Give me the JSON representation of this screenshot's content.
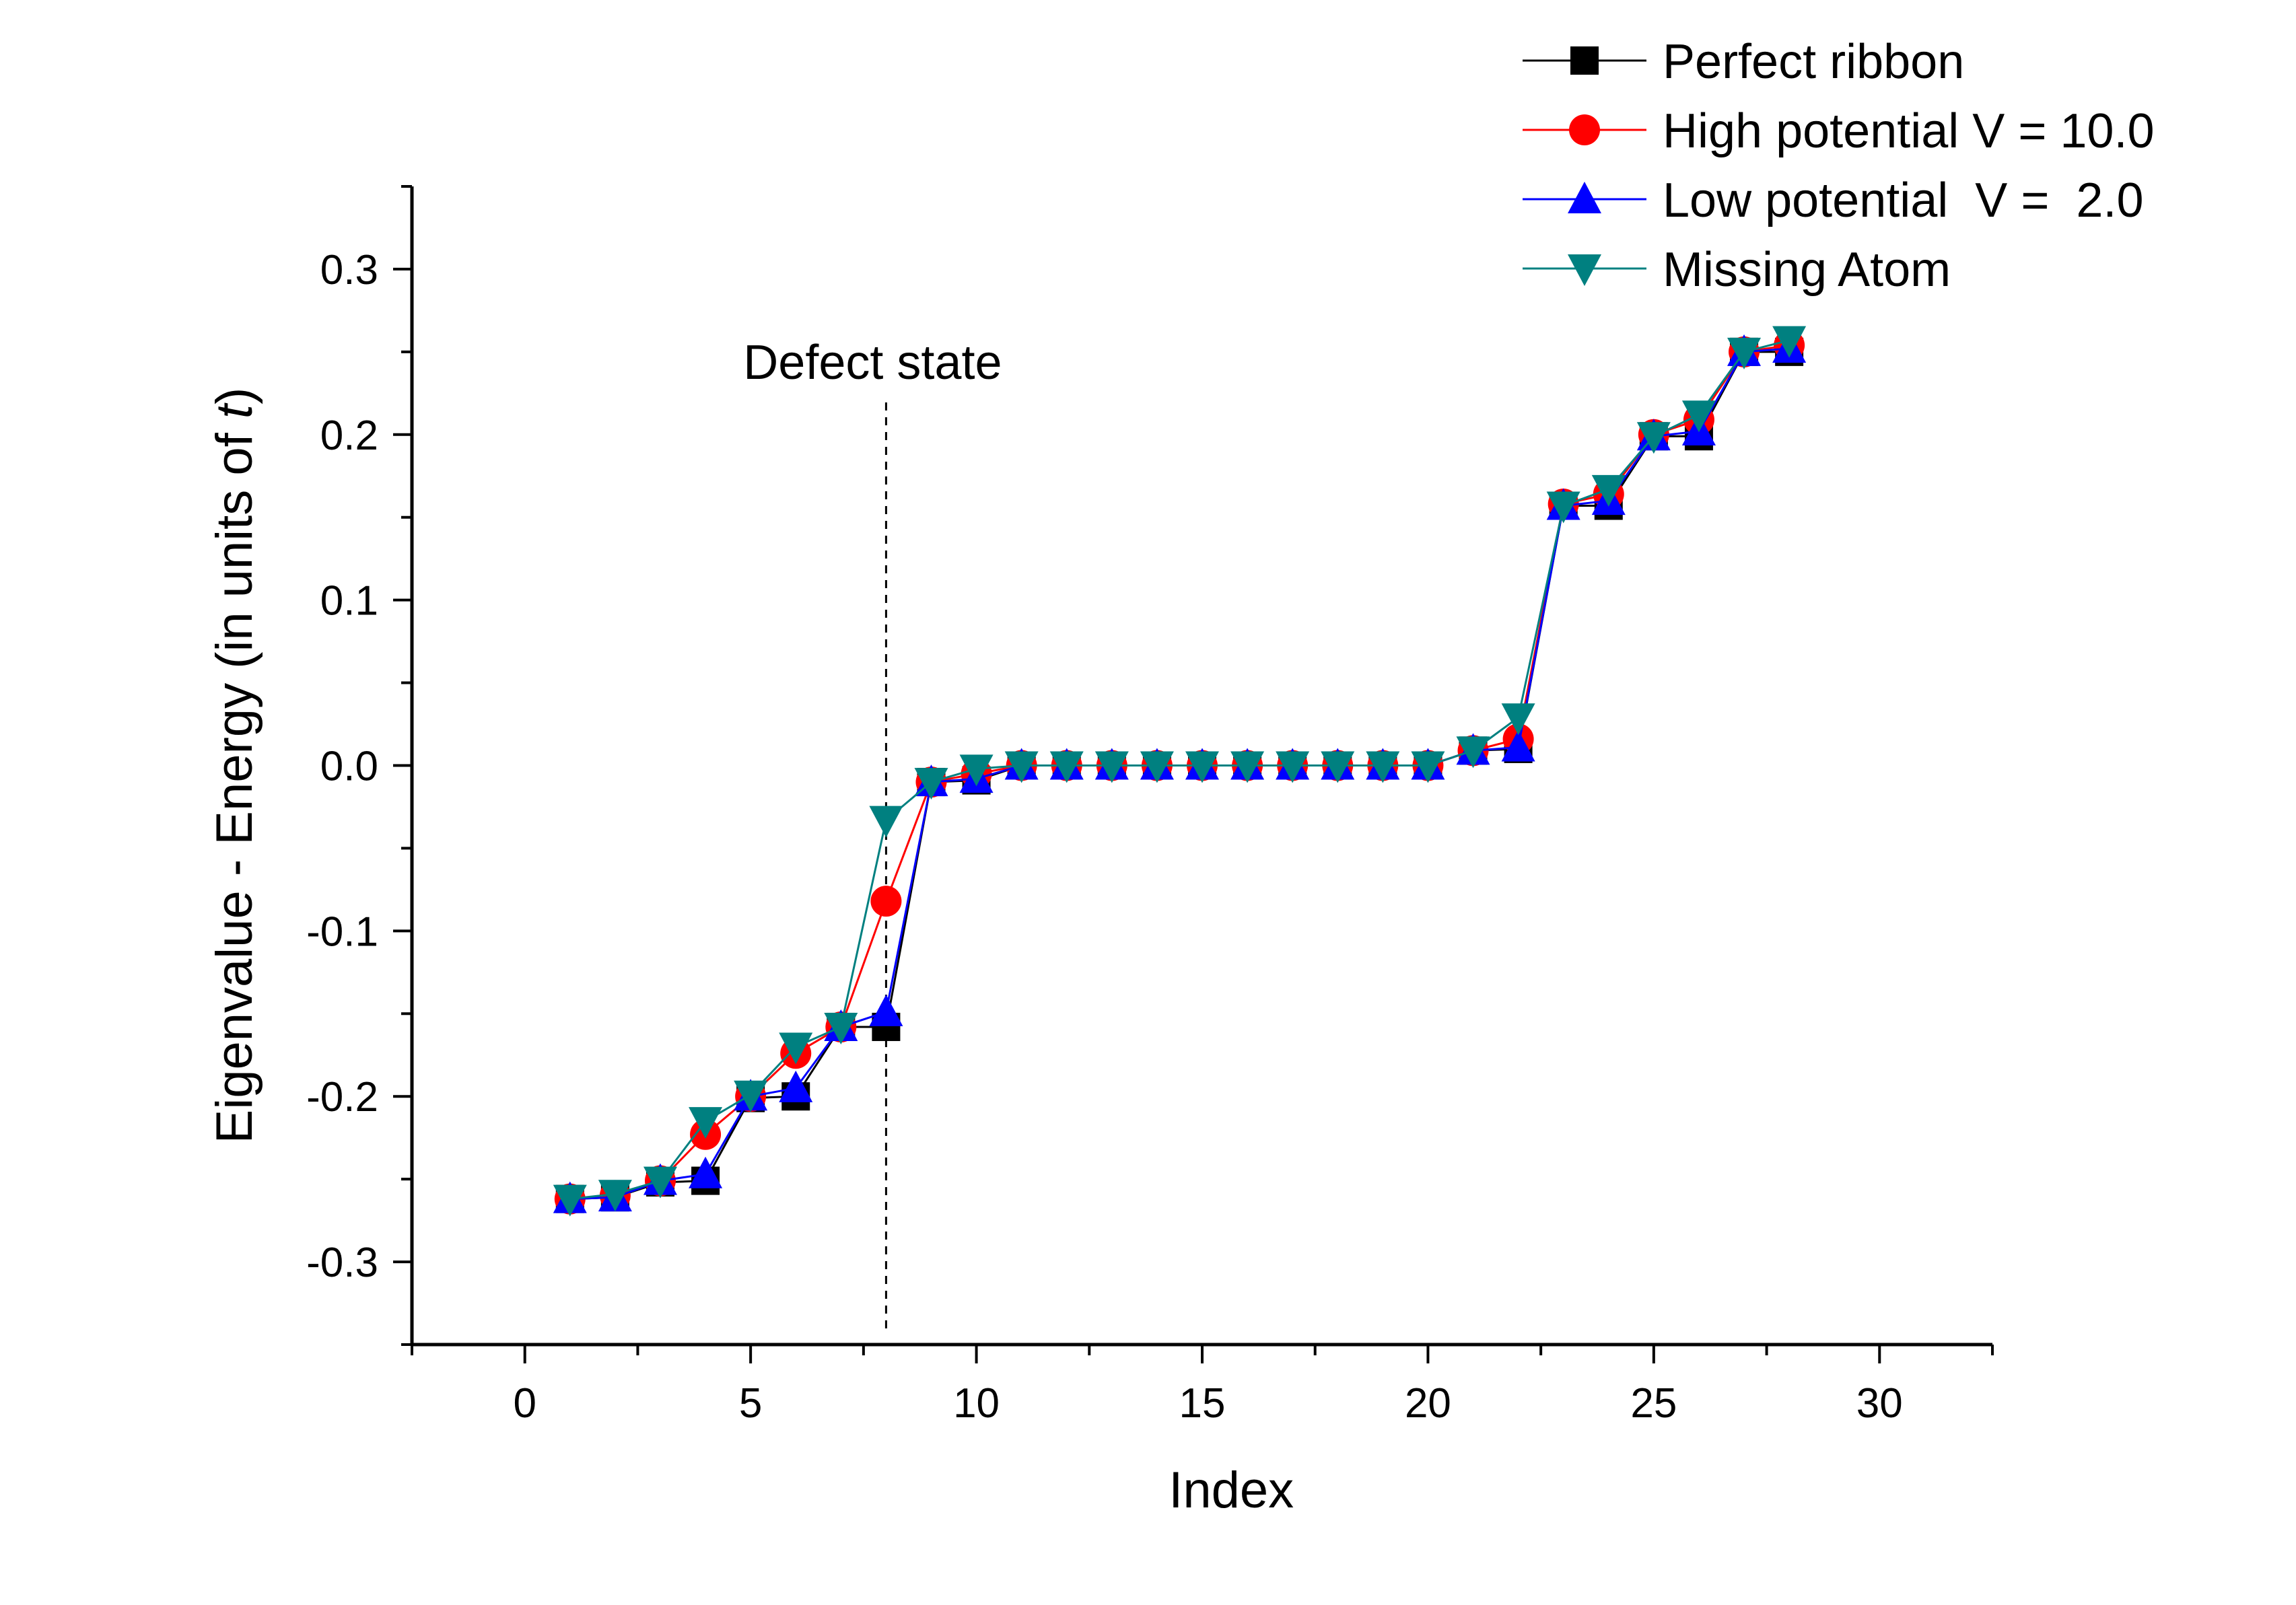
{
  "chart_data": {
    "type": "line",
    "title": "",
    "xlabel": "Index",
    "ylabel_prefix": "Eigenvalue - Energy (in units of ",
    "ylabel_var": "t",
    "ylabel_suffix": ")",
    "xlim": [
      -2.5,
      32.5
    ],
    "ylim": [
      -0.35,
      0.35
    ],
    "x_ticks": [
      0,
      5,
      10,
      15,
      20,
      25,
      30
    ],
    "x_tick_labels": [
      "0",
      "5",
      "10",
      "15",
      "20",
      "25",
      "30"
    ],
    "y_ticks": [
      -0.3,
      -0.2,
      -0.1,
      0.0,
      0.1,
      0.2,
      0.3
    ],
    "y_tick_labels": [
      "-0.3",
      "-0.2",
      "-0.1",
      "0.0",
      "0.1",
      "0.2",
      "0.3"
    ],
    "grid": false,
    "legend_position": "top-right",
    "annotation": {
      "text": "Defect state",
      "x": 8
    },
    "x": [
      1,
      2,
      3,
      4,
      5,
      6,
      7,
      8,
      9,
      10,
      11,
      12,
      13,
      14,
      15,
      16,
      17,
      18,
      19,
      20,
      21,
      22,
      23,
      24,
      25,
      26,
      27,
      28
    ],
    "series": [
      {
        "name": "Perfect ribbon",
        "color": "#000000",
        "marker": "square",
        "values": [
          -0.262,
          -0.261,
          -0.252,
          -0.251,
          -0.201,
          -0.2,
          -0.158,
          -0.158,
          -0.01,
          -0.009,
          0.0,
          0.0,
          0.0,
          0.0,
          0.0,
          0.0,
          0.0,
          0.0,
          0.0,
          0.0,
          0.009,
          0.01,
          0.157,
          0.157,
          0.199,
          0.199,
          0.25,
          0.25
        ]
      },
      {
        "name": "High potential V = 10.0",
        "color": "#ff0000",
        "marker": "circle",
        "values": [
          -0.262,
          -0.26,
          -0.251,
          -0.223,
          -0.2,
          -0.174,
          -0.158,
          -0.082,
          -0.01,
          -0.005,
          0.0,
          0.0,
          0.0,
          0.0,
          0.0,
          0.0,
          0.0,
          0.0,
          0.0,
          0.0,
          0.009,
          0.016,
          0.158,
          0.164,
          0.2,
          0.209,
          0.25,
          0.254
        ]
      },
      {
        "name": "Low potential  V =  2.0",
        "color": "#0000ff",
        "marker": "triangle-up",
        "values": [
          -0.262,
          -0.261,
          -0.251,
          -0.247,
          -0.2,
          -0.195,
          -0.158,
          -0.149,
          -0.01,
          -0.008,
          0.0,
          0.0,
          0.0,
          0.0,
          0.0,
          0.0,
          0.0,
          0.0,
          0.0,
          0.0,
          0.009,
          0.011,
          0.157,
          0.16,
          0.199,
          0.202,
          0.25,
          0.252
        ]
      },
      {
        "name": "Missing Atom",
        "color": "#008080",
        "marker": "triangle-down",
        "values": [
          -0.262,
          -0.259,
          -0.251,
          -0.215,
          -0.199,
          -0.17,
          -0.158,
          -0.033,
          -0.01,
          -0.002,
          0.0,
          0.0,
          0.0,
          0.0,
          0.0,
          0.0,
          0.0,
          0.0,
          0.0,
          0.0,
          0.009,
          0.029,
          0.157,
          0.167,
          0.199,
          0.212,
          0.25,
          0.257
        ]
      }
    ]
  }
}
